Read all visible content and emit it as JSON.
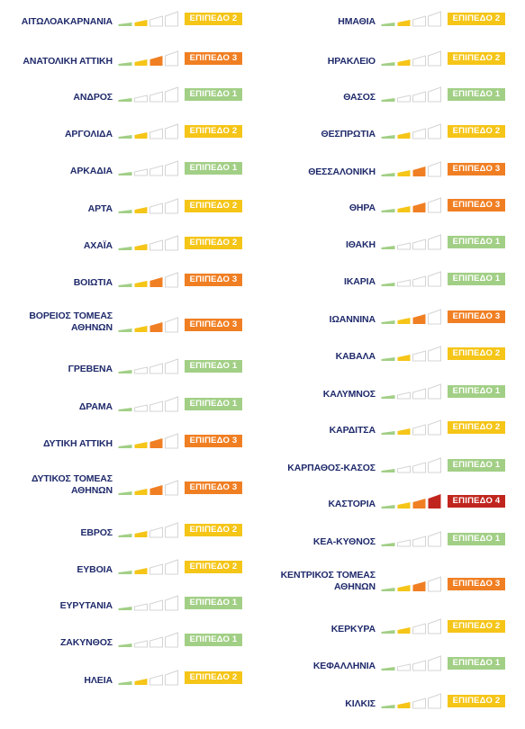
{
  "colors": {
    "name_text": "#1f2a6b",
    "level1": "#a2cf86",
    "level2": "#f5c518",
    "level3": "#f07f23",
    "level4": "#c0261e",
    "bar_empty_stroke": "#d4d4d4"
  },
  "left": [
    {
      "name": "ΑΙΤΩΛΟΑΚΑΡΝΑΝΙΑ",
      "level": 2,
      "badge": "ΕΠΙΠΕΔΟ 2"
    },
    {
      "name": "ΑΝΑΤΟΛΙΚΗ ΑΤΤΙΚΗ",
      "level": 3,
      "badge": "ΕΠΙΠΕΔΟ 3"
    },
    {
      "name": "ΑΝΔΡΟΣ",
      "level": 1,
      "badge": "ΕΠΙΠΕΔΟ 1"
    },
    {
      "name": "ΑΡΓΟΛΙΔΑ",
      "level": 2,
      "badge": "ΕΠΙΠΕΔΟ 2"
    },
    {
      "name": "ΑΡΚΑΔΙΑ",
      "level": 1,
      "badge": "ΕΠΙΠΕΔΟ 1"
    },
    {
      "name": "ΑΡΤΑ",
      "level": 2,
      "badge": "ΕΠΙΠΕΔΟ 2"
    },
    {
      "name": "ΑΧΑΪΑ",
      "level": 2,
      "badge": "ΕΠΙΠΕΔΟ 2"
    },
    {
      "name": "ΒΟΙΩΤΙΑ",
      "level": 3,
      "badge": "ΕΠΙΠΕΔΟ 3"
    },
    {
      "name": "ΒΟΡΕΙΟΣ ΤΟΜΕΑΣ ΑΘΗΝΩΝ",
      "level": 3,
      "badge": "ΕΠΙΠΕΔΟ 3"
    },
    {
      "name": "ΓΡΕΒΕΝΑ",
      "level": 1,
      "badge": "ΕΠΙΠΕΔΟ 1"
    },
    {
      "name": "ΔΡΑΜΑ",
      "level": 1,
      "badge": "ΕΠΙΠΕΔΟ 1"
    },
    {
      "name": "ΔΥΤΙΚΗ ΑΤΤΙΚΗ",
      "level": 3,
      "badge": "ΕΠΙΠΕΔΟ 3"
    },
    {
      "name": "ΔΥΤΙΚΟΣ ΤΟΜΕΑΣ ΑΘΗΝΩΝ",
      "level": 3,
      "badge": "ΕΠΙΠΕΔΟ 3"
    },
    {
      "name": "ΕΒΡΟΣ",
      "level": 2,
      "badge": "ΕΠΙΠΕΔΟ 2"
    },
    {
      "name": "ΕΥΒΟΙΑ",
      "level": 2,
      "badge": "ΕΠΙΠΕΔΟ 2"
    },
    {
      "name": "ΕΥΡΥΤΑΝΙΑ",
      "level": 1,
      "badge": "ΕΠΙΠΕΔΟ 1"
    },
    {
      "name": "ΖΑΚΥΝΘΟΣ",
      "level": 1,
      "badge": "ΕΠΙΠΕΔΟ 1"
    },
    {
      "name": "ΗΛΕΙΑ",
      "level": 2,
      "badge": "ΕΠΙΠΕΔΟ 2"
    }
  ],
  "right": [
    {
      "name": "ΗΜΑΘΙΑ",
      "level": 2,
      "badge": "ΕΠΙΠΕΔΟ 2"
    },
    {
      "name": "ΗΡΑΚΛΕΙΟ",
      "level": 2,
      "badge": "ΕΠΙΠΕΔΟ 2"
    },
    {
      "name": "ΘΑΣΟΣ",
      "level": 1,
      "badge": "ΕΠΙΠΕΔΟ 1"
    },
    {
      "name": "ΘΕΣΠΡΩΤΙΑ",
      "level": 2,
      "badge": "ΕΠΙΠΕΔΟ 2"
    },
    {
      "name": "ΘΕΣΣΑΛΟΝΙΚΗ",
      "level": 3,
      "badge": "ΕΠΙΠΕΔΟ 3"
    },
    {
      "name": "ΘΗΡΑ",
      "level": 3,
      "badge": "ΕΠΙΠΕΔΟ 3"
    },
    {
      "name": "ΙΘΑΚΗ",
      "level": 1,
      "badge": "ΕΠΙΠΕΔΟ 1"
    },
    {
      "name": "ΙΚΑΡΙΑ",
      "level": 1,
      "badge": "ΕΠΙΠΕΔΟ 1"
    },
    {
      "name": "ΙΩΑΝΝΙΝΑ",
      "level": 3,
      "badge": "ΕΠΙΠΕΔΟ 3"
    },
    {
      "name": "ΚΑΒΑΛΑ",
      "level": 2,
      "badge": "ΕΠΙΠΕΔΟ 2"
    },
    {
      "name": "ΚΑΛΥΜΝΟΣ",
      "level": 1,
      "badge": "ΕΠΙΠΕΔΟ 1"
    },
    {
      "name": "ΚΑΡΔΙΤΣΑ",
      "level": 2,
      "badge": "ΕΠΙΠΕΔΟ 2"
    },
    {
      "name": "ΚΑΡΠΑΘΟΣ-ΚΑΣΟΣ",
      "level": 1,
      "badge": "ΕΠΙΠΕΔΟ 1"
    },
    {
      "name": "ΚΑΣΤΟΡΙΑ",
      "level": 4,
      "badge": "ΕΠΙΠΕΔΟ 4"
    },
    {
      "name": "ΚΕΑ-ΚΥΘΝΟΣ",
      "level": 1,
      "badge": "ΕΠΙΠΕΔΟ 1"
    },
    {
      "name": "ΚΕΝΤΡΙΚΟΣ ΤΟΜΕΑΣ ΑΘΗΝΩΝ",
      "level": 3,
      "badge": "ΕΠΙΠΕΔΟ 3"
    },
    {
      "name": "ΚΕΡΚΥΡΑ",
      "level": 2,
      "badge": "ΕΠΙΠΕΔΟ 2"
    },
    {
      "name": "ΚΕΦΑΛΛΗΝΙΑ",
      "level": 1,
      "badge": "ΕΠΙΠΕΔΟ 1"
    },
    {
      "name": "ΚΙΛΚΙΣ",
      "level": 2,
      "badge": "ΕΠΙΠΕΔΟ 2"
    }
  ]
}
